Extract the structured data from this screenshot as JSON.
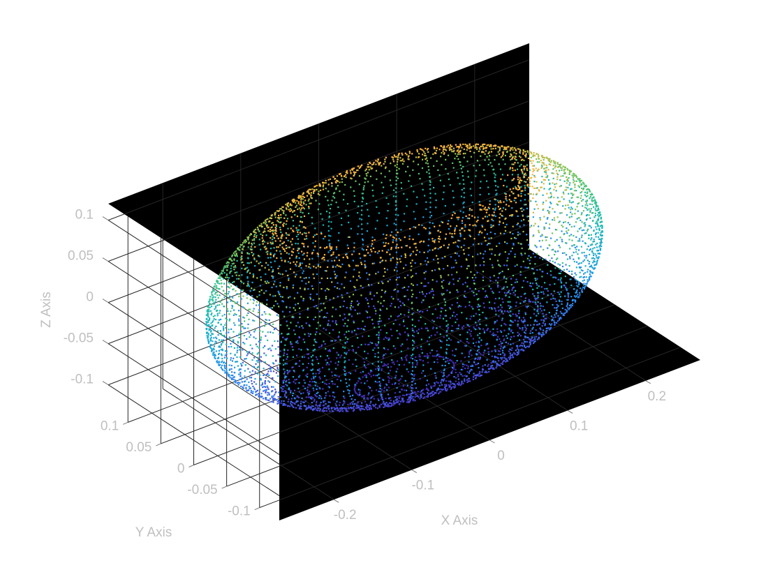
{
  "chart_data": {
    "type": "scatter",
    "title": "",
    "xlabel": "X Axis",
    "ylabel": "Y Axis",
    "zlabel": "Z Axis",
    "xlim": [
      -0.27,
      0.27
    ],
    "ylim": [
      -0.13,
      0.13
    ],
    "zlim": [
      -0.13,
      0.12
    ],
    "x_ticks": [
      -0.2,
      -0.1,
      0,
      0.1,
      0.2
    ],
    "x_tick_labels": [
      "-0.2",
      "-0.1",
      "0",
      "0.1",
      "0.2"
    ],
    "y_ticks": [
      -0.1,
      -0.05,
      0,
      0.05,
      0.1
    ],
    "y_tick_labels": [
      "-0.1",
      "-0.05",
      "0",
      "0.05",
      "0.1"
    ],
    "z_ticks": [
      -0.1,
      -0.05,
      0,
      0.05,
      0.1
    ],
    "z_tick_labels": [
      "-0.1",
      "-0.05",
      "0",
      "0.05",
      "0.1"
    ],
    "grid": true,
    "axes_background": "#000000",
    "tick_label_color": "#bfbfbf",
    "grid_color": "#262626",
    "colormap": "parula",
    "color_by": "z",
    "colormap_stops": [
      "#3e26a8",
      "#4a4fe0",
      "#2e86f5",
      "#18a9d6",
      "#21c0a0",
      "#7cc555",
      "#ffb43c"
    ],
    "point_cloud": {
      "shape": "half-ellipsoid shell with ring contours and top rim",
      "semi_axis_x": 0.235,
      "semi_axis_y": 0.115,
      "semi_axis_z": 0.125,
      "center_z": 0.0,
      "rim_z": 0.095,
      "rings": 26,
      "points_per_ring": 130
    }
  }
}
